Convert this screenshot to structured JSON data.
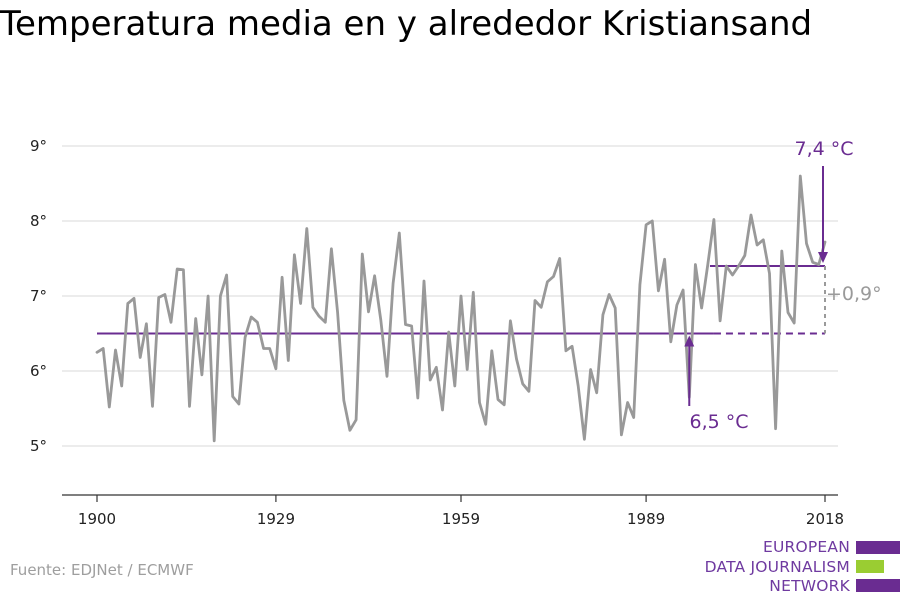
{
  "title": "Temperatura media en y alrededor Kristiansand",
  "source": "Fuente: EDJNet / ECMWF",
  "logo": {
    "line1": "EUROPEAN",
    "line2": "DATA JOURNALISM",
    "line3": "NETWORK"
  },
  "colors": {
    "series": "#999999",
    "accent": "#6a2c91",
    "grid": "#d9d9d9",
    "green": "#9acd32"
  },
  "chart_data": {
    "type": "line",
    "title": "Temperatura media en y alrededor Kristiansand",
    "xlabel": "",
    "ylabel": "",
    "xlim": [
      1900,
      2018
    ],
    "ylim": [
      4.3,
      9.5
    ],
    "x_ticks": [
      1900,
      1929,
      1959,
      1989,
      2018
    ],
    "y_ticks": [
      {
        "value": 5,
        "label": "5°"
      },
      {
        "value": 6,
        "label": "6°"
      },
      {
        "value": 7,
        "label": "7°"
      },
      {
        "value": 8,
        "label": "8°"
      },
      {
        "value": 9,
        "label": "9°"
      }
    ],
    "grid": true,
    "series": [
      {
        "x": [
          1900,
          1901,
          1902,
          1903,
          1904,
          1905,
          1906,
          1907,
          1908,
          1909,
          1910,
          1911,
          1912,
          1913,
          1914,
          1915,
          1916,
          1917,
          1918,
          1919,
          1920,
          1921,
          1922,
          1923,
          1924,
          1925,
          1926,
          1927,
          1928,
          1929,
          1930,
          1931,
          1932,
          1933,
          1934,
          1935,
          1936,
          1937,
          1938,
          1939,
          1940,
          1941,
          1942,
          1943,
          1944,
          1945,
          1946,
          1947,
          1948,
          1949,
          1950,
          1951,
          1952,
          1953,
          1954,
          1955,
          1956,
          1957,
          1958,
          1959,
          1960,
          1961,
          1962,
          1963,
          1964,
          1965,
          1966,
          1967,
          1968,
          1969,
          1970,
          1971,
          1972,
          1973,
          1974,
          1975,
          1976,
          1977,
          1978,
          1979,
          1980,
          1981,
          1982,
          1983,
          1984,
          1985,
          1986,
          1987,
          1988,
          1989,
          1990,
          1991,
          1992,
          1993,
          1994,
          1995,
          1996,
          1997,
          1998,
          1999,
          2000,
          2001,
          2002,
          2003,
          2004,
          2005,
          2006,
          2007,
          2008,
          2009,
          2010,
          2011,
          2012,
          2013,
          2014,
          2015,
          2016,
          2017,
          2018
        ],
        "values": [
          6.25,
          6.3,
          5.52,
          6.28,
          5.8,
          6.9,
          6.97,
          6.18,
          6.63,
          5.53,
          6.98,
          7.02,
          6.65,
          7.36,
          7.35,
          5.53,
          6.7,
          5.95,
          7.0,
          5.07,
          7.0,
          7.28,
          5.66,
          5.56,
          6.45,
          6.72,
          6.65,
          6.3,
          6.3,
          6.03,
          7.25,
          6.14,
          7.55,
          6.9,
          7.9,
          6.85,
          6.73,
          6.65,
          7.63,
          6.78,
          5.61,
          5.21,
          5.35,
          7.56,
          6.79,
          7.27,
          6.68,
          5.93,
          7.17,
          7.84,
          6.62,
          6.6,
          5.64,
          7.2,
          5.88,
          6.05,
          5.48,
          6.52,
          5.8,
          7.0,
          6.02,
          7.05,
          5.58,
          5.29,
          6.27,
          5.62,
          5.55,
          6.67,
          6.16,
          5.83,
          5.73,
          6.94,
          6.85,
          7.19,
          7.26,
          7.5,
          6.27,
          6.33,
          5.8,
          5.09,
          6.02,
          5.71,
          6.75,
          7.02,
          6.84,
          5.15,
          5.58,
          5.38,
          7.15,
          7.95,
          8.0,
          7.07,
          7.49,
          6.39,
          6.88,
          7.08,
          5.65,
          7.42,
          6.84,
          7.42,
          8.02,
          6.67,
          7.4,
          7.28,
          7.4,
          7.54,
          8.08,
          7.68,
          7.75,
          7.3,
          5.23,
          7.6,
          6.78,
          6.64,
          8.6,
          7.7,
          7.45,
          7.42,
          7.72
        ]
      }
    ],
    "baseline": {
      "value": 6.5,
      "label": "6,5 °C",
      "from": 1900,
      "to": 2018,
      "dashed_from": 2000
    },
    "recent": {
      "value": 7.4,
      "label": "7,4 °C",
      "from": 2000,
      "to": 2018
    },
    "difference_label": "+0,9°"
  }
}
